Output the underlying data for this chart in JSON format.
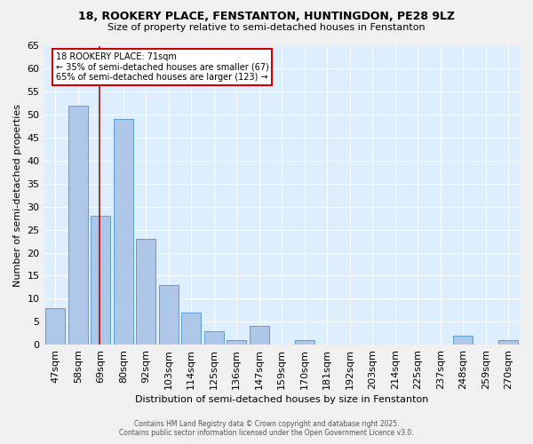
{
  "title_line1": "18, ROOKERY PLACE, FENSTANTON, HUNTINGDON, PE28 9LZ",
  "title_line2": "Size of property relative to semi-detached houses in Fenstanton",
  "categories": [
    "47sqm",
    "58sqm",
    "69sqm",
    "80sqm",
    "92sqm",
    "103sqm",
    "114sqm",
    "125sqm",
    "136sqm",
    "147sqm",
    "159sqm",
    "170sqm",
    "181sqm",
    "192sqm",
    "203sqm",
    "214sqm",
    "225sqm",
    "237sqm",
    "248sqm",
    "259sqm",
    "270sqm"
  ],
  "values": [
    8,
    52,
    28,
    49,
    23,
    13,
    7,
    3,
    1,
    4,
    0,
    1,
    0,
    0,
    0,
    0,
    0,
    0,
    2,
    0,
    1
  ],
  "bar_color": "#aec6e8",
  "bar_edge_color": "#5a9fd4",
  "red_line_x": 1.93,
  "xlabel": "Distribution of semi-detached houses by size in Fenstanton",
  "ylabel": "Number of semi-detached properties",
  "annotation_title": "18 ROOKERY PLACE: 71sqm",
  "annotation_line1": "← 35% of semi-detached houses are smaller (67)",
  "annotation_line2": "65% of semi-detached houses are larger (123) →",
  "annotation_box_color": "#ffffff",
  "annotation_box_edge": "#cc0000",
  "footer_line1": "Contains HM Land Registry data © Crown copyright and database right 2025.",
  "footer_line2": "Contains public sector information licensed under the Open Government Licence v3.0.",
  "ylim": [
    0,
    65
  ],
  "yticks": [
    0,
    5,
    10,
    15,
    20,
    25,
    30,
    35,
    40,
    45,
    50,
    55,
    60,
    65
  ],
  "background_color": "#ddeeff",
  "grid_color": "#ffffff",
  "fig_bg_color": "#f0f0f0"
}
